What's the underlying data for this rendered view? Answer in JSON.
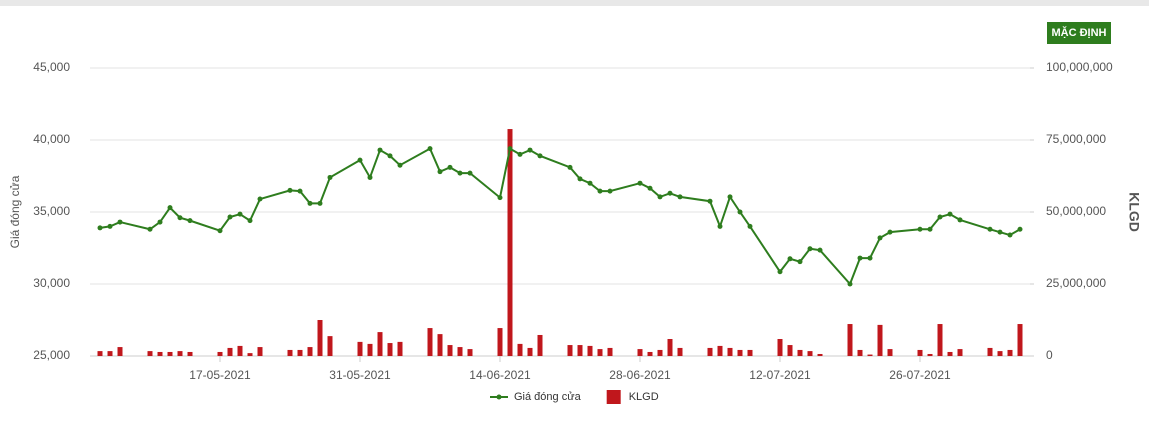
{
  "toolbar": {
    "button": "MẶC ĐỊNH"
  },
  "chart_data": {
    "type": "combo",
    "y_label": "Giá đóng cửa",
    "y2_label": "KLGD",
    "x": [
      "05-05-2021",
      "06-05-2021",
      "07-05-2021",
      "10-05-2021",
      "11-05-2021",
      "12-05-2021",
      "13-05-2021",
      "14-05-2021",
      "17-05-2021",
      "18-05-2021",
      "19-05-2021",
      "20-05-2021",
      "21-05-2021",
      "24-05-2021",
      "25-05-2021",
      "26-05-2021",
      "27-05-2021",
      "28-05-2021",
      "31-05-2021",
      "01-06-2021",
      "02-06-2021",
      "03-06-2021",
      "04-06-2021",
      "07-06-2021",
      "08-06-2021",
      "09-06-2021",
      "10-06-2021",
      "11-06-2021",
      "14-06-2021",
      "15-06-2021",
      "16-06-2021",
      "17-06-2021",
      "18-06-2021",
      "21-06-2021",
      "22-06-2021",
      "23-06-2021",
      "24-06-2021",
      "25-06-2021",
      "28-06-2021",
      "29-06-2021",
      "30-06-2021",
      "01-07-2021",
      "02-07-2021",
      "05-07-2021",
      "06-07-2021",
      "07-07-2021",
      "08-07-2021",
      "09-07-2021",
      "12-07-2021",
      "13-07-2021",
      "14-07-2021",
      "15-07-2021",
      "16-07-2021",
      "19-07-2021",
      "20-07-2021",
      "21-07-2021",
      "22-07-2021",
      "23-07-2021",
      "26-07-2021",
      "27-07-2021",
      "28-07-2021",
      "29-07-2021",
      "30-07-2021",
      "02-08-2021",
      "03-08-2021",
      "04-08-2021",
      "05-08-2021"
    ],
    "series": [
      {
        "name": "Giá đóng cửa",
        "type": "line",
        "color": "#2e7d1e",
        "values": [
          33900,
          34000,
          34300,
          33800,
          34300,
          35300,
          34600,
          34400,
          33700,
          34650,
          34850,
          34400,
          35900,
          36500,
          36450,
          35600,
          35600,
          37400,
          38600,
          37400,
          39300,
          38900,
          38250,
          39400,
          37800,
          38100,
          37700,
          37700,
          36000,
          39400,
          39000,
          39300,
          38900,
          38100,
          37300,
          37000,
          36450,
          36450,
          37000,
          36650,
          36050,
          36300,
          36050,
          35750,
          34000,
          36050,
          35000,
          34000,
          30850,
          31750,
          31550,
          32450,
          32350,
          30000,
          31800,
          31800,
          33200,
          33600,
          33800,
          33800,
          34650,
          34850,
          34450,
          33800,
          33600,
          33400,
          33800
        ]
      },
      {
        "name": "KLGD",
        "type": "bar",
        "axis": "y2",
        "color": "#c0171c",
        "values": [
          1700000,
          1700000,
          3100000,
          1700000,
          1400000,
          1400000,
          1700000,
          1400000,
          1400000,
          2800000,
          3500000,
          1000000,
          3100000,
          2100000,
          2100000,
          3100000,
          12500000,
          6900000,
          4900000,
          4200000,
          8300000,
          4500000,
          4900000,
          9700000,
          7600000,
          3800000,
          3100000,
          2400000,
          9700000,
          78800000,
          4200000,
          2800000,
          7300000,
          3800000,
          3800000,
          3500000,
          2400000,
          2800000,
          2400000,
          1400000,
          2100000,
          5900000,
          2800000,
          2800000,
          3500000,
          2800000,
          2100000,
          2100000,
          5900000,
          3800000,
          2100000,
          1700000,
          700000,
          11100000,
          2100000,
          500000,
          10800000,
          2400000,
          2100000,
          700000,
          11100000,
          1400000,
          2400000,
          2800000,
          1700000,
          2100000,
          11100000
        ]
      }
    ],
    "xlim": [
      "04-05-2021",
      "06-08-2021"
    ],
    "xticks": [
      "17-05-2021",
      "31-05-2021",
      "14-06-2021",
      "28-06-2021",
      "12-07-2021",
      "26-07-2021"
    ],
    "ylim": [
      25000,
      45000
    ],
    "yticks": [
      {
        "value": 25000,
        "label": "25,000"
      },
      {
        "value": 30000,
        "label": "30,000"
      },
      {
        "value": 35000,
        "label": "35,000"
      },
      {
        "value": 40000,
        "label": "40,000"
      },
      {
        "value": 45000,
        "label": "45,000"
      }
    ],
    "y2lim": [
      0,
      100000000
    ],
    "y2ticks": [
      0,
      {
        "value": 25000000,
        "label": "25,000,000"
      },
      {
        "value": 50000000,
        "label": "50,000,000"
      },
      {
        "value": 75000000,
        "label": "75,000,000"
      },
      {
        "value": 100000000,
        "label": "100,000,000"
      }
    ],
    "grid": true,
    "legend": "bottom"
  }
}
